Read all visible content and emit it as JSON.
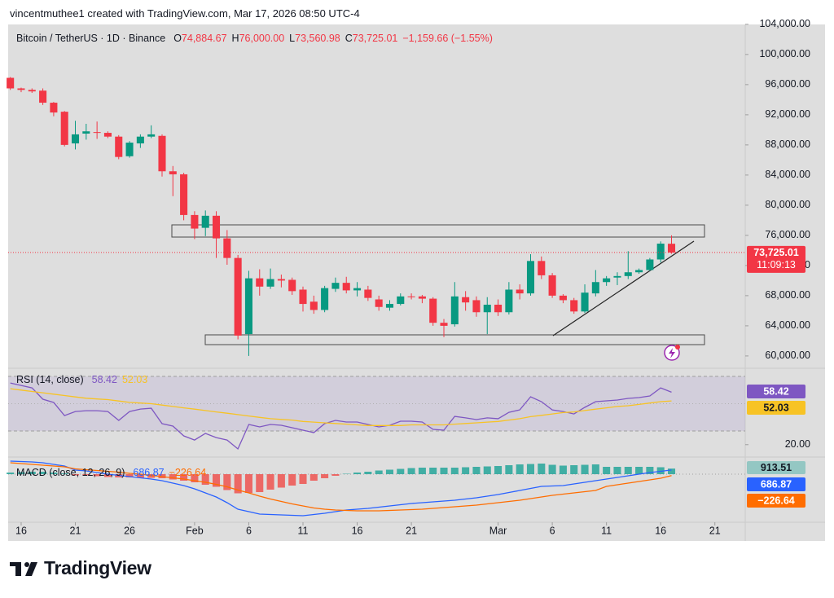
{
  "header": {
    "credit": "vincentmuthee1 created with TradingView.com, Mar 17, 2026 08:50 UTC-4"
  },
  "chart_data": [
    {
      "type": "candlestick",
      "subtitle": "Bitcoin / TetherUS · 1D · Binance",
      "legend": [
        {
          "key": "O",
          "value": "74,884.67"
        },
        {
          "key": "H",
          "value": "76,000.00"
        },
        {
          "key": "L",
          "value": "73,560.98"
        },
        {
          "key": "C",
          "value": "73,725.01"
        }
      ],
      "change": "−1,159.66 (−1.55%)",
      "countdown": "11:09:13",
      "up_color": "#089981",
      "down_color": "#f23645",
      "open": [
        96900,
        95500,
        95300,
        95200,
        93600,
        92400,
        88200,
        89500,
        89700,
        89600,
        89100,
        86500,
        88200,
        89100,
        89200,
        84500,
        84100,
        78700,
        77000,
        78600,
        75600,
        73000,
        62900,
        70300,
        69200,
        70200,
        70100,
        68800,
        67200,
        66100,
        68900,
        69700,
        68700,
        68800,
        67500,
        66400,
        66900,
        67900,
        67900,
        67600,
        64400,
        64200,
        67800,
        67400,
        65800,
        66800,
        65800,
        68800,
        68300,
        72600,
        70700,
        68000,
        67400,
        65900,
        68300,
        69800,
        70400,
        70600,
        71100,
        71400,
        72800,
        74884.67
      ],
      "high": [
        97000,
        95600,
        95500,
        95500,
        93700,
        92500,
        91200,
        90800,
        91100,
        89800,
        89300,
        88500,
        89400,
        90600,
        89400,
        85200,
        84300,
        79200,
        79300,
        79200,
        76700,
        73400,
        71300,
        71500,
        71600,
        70800,
        70400,
        69200,
        68000,
        69300,
        70400,
        70500,
        69800,
        69300,
        68000,
        67400,
        68300,
        68300,
        68100,
        67800,
        64900,
        69800,
        68600,
        67900,
        67800,
        67500,
        69800,
        69500,
        73500,
        73200,
        71000,
        68200,
        67700,
        69500,
        71400,
        70600,
        71100,
        73900,
        71600,
        73000,
        75200,
        76000
      ],
      "low": [
        95300,
        95000,
        94900,
        93300,
        91800,
        87800,
        87400,
        88700,
        88800,
        88900,
        86100,
        86300,
        87600,
        88900,
        83800,
        81200,
        78000,
        75500,
        75900,
        73000,
        72100,
        62200,
        60000,
        68000,
        68900,
        69100,
        68100,
        65900,
        65600,
        65800,
        68500,
        68300,
        67900,
        67300,
        66000,
        66000,
        66700,
        67500,
        67000,
        64000,
        62500,
        63900,
        66000,
        65200,
        62900,
        65300,
        65500,
        67500,
        68000,
        70200,
        67700,
        67000,
        65600,
        65700,
        67900,
        69300,
        69400,
        70200,
        70900,
        71300,
        72400,
        73560.98
      ],
      "close": [
        95500,
        95300,
        95100,
        93600,
        92300,
        88000,
        89400,
        89800,
        89600,
        89100,
        86400,
        88300,
        89100,
        89400,
        84500,
        84100,
        78700,
        76900,
        78600,
        75600,
        73000,
        62700,
        70300,
        69200,
        70200,
        70000,
        68600,
        66900,
        66100,
        69000,
        69700,
        68700,
        69000,
        67700,
        66500,
        66900,
        67900,
        67800,
        67600,
        64400,
        64000,
        67900,
        67100,
        65800,
        66800,
        65800,
        68800,
        68300,
        72600,
        70700,
        68000,
        67400,
        65900,
        68400,
        69800,
        70300,
        70600,
        71100,
        71400,
        72800,
        74900,
        73725.01
      ],
      "xlim": [
        -0.2,
        67.8
      ],
      "xticks": [
        {
          "value": 1,
          "label": "16"
        },
        {
          "value": 6,
          "label": "21"
        },
        {
          "value": 11,
          "label": "26"
        },
        {
          "value": 17,
          "label": "Feb"
        },
        {
          "value": 22,
          "label": "6"
        },
        {
          "value": 27,
          "label": "11"
        },
        {
          "value": 32,
          "label": "16"
        },
        {
          "value": 37,
          "label": "21"
        },
        {
          "value": 45,
          "label": "Mar"
        },
        {
          "value": 50,
          "label": "6"
        },
        {
          "value": 55,
          "label": "11"
        },
        {
          "value": 60,
          "label": "16"
        },
        {
          "value": 65,
          "label": "21"
        }
      ],
      "ylim": [
        58800,
        104200
      ],
      "yticks": [
        {
          "value": 60000,
          "label": "60,000.00"
        },
        {
          "value": 64000,
          "label": "64,000.00"
        },
        {
          "value": 68000,
          "label": "68,000.00"
        },
        {
          "value": 72000,
          "label": "72,000.00"
        },
        {
          "value": 76000,
          "label": "76,000.00"
        },
        {
          "value": 80000,
          "label": "80,000.00"
        },
        {
          "value": 84000,
          "label": "84,000.00"
        },
        {
          "value": 88000,
          "label": "88,000.00"
        },
        {
          "value": 92000,
          "label": "92,000.00"
        },
        {
          "value": 96000,
          "label": "96,000.00"
        },
        {
          "value": 100000,
          "label": "100,000.00"
        },
        {
          "value": 104000,
          "label": "104,000.00"
        }
      ],
      "grid": false
    },
    {
      "type": "line",
      "title": "RSI (14, close)",
      "series": [
        {
          "color": "#7e57c2",
          "last_label": "58.42",
          "values": [
            65.2,
            63.4,
            61.6,
            53.3,
            50.9,
            41.3,
            44.3,
            44.9,
            44.9,
            44.3,
            37.8,
            44.3,
            46.1,
            46.7,
            35.4,
            33.6,
            26.4,
            23.4,
            28.2,
            25.2,
            23.4,
            16.9,
            34.8,
            33.0,
            34.8,
            34.2,
            32.4,
            30.6,
            28.8,
            35.4,
            37.8,
            36.6,
            36.6,
            34.8,
            33.0,
            34.2,
            37.2,
            37.2,
            36.6,
            31.2,
            30.6,
            40.7,
            39.6,
            38.4,
            39.6,
            39.0,
            43.7,
            45.5,
            55.1,
            51.5,
            45.5,
            44.3,
            42.5,
            47.3,
            51.5,
            52.1,
            52.7,
            53.9,
            54.5,
            55.7,
            61.6,
            58.42
          ]
        },
        {
          "color": "#f7c325",
          "last_label": "52.03",
          "values": [
            61,
            60,
            59,
            58,
            57,
            56,
            55,
            54,
            53.5,
            53,
            52,
            51,
            50.5,
            50,
            49,
            48,
            47,
            46,
            45,
            44,
            43,
            42,
            41,
            40,
            39,
            38.5,
            38,
            37,
            36.5,
            36,
            35.5,
            35,
            34.5,
            34,
            34,
            34,
            34,
            34.5,
            34.5,
            34.5,
            34.5,
            35,
            35.5,
            36,
            36.5,
            37,
            38,
            39,
            40.5,
            41.5,
            42.5,
            43.5,
            44,
            45,
            46,
            47,
            48,
            48.5,
            49.5,
            50.5,
            51.5,
            52.03
          ]
        }
      ],
      "ylim": [
        11.5,
        74.2
      ],
      "yticks": [
        {
          "value": 20,
          "label": "20.00"
        }
      ]
    },
    {
      "type": "line",
      "title": "MACD (close, 12, 26, 9)",
      "series": [
        {
          "color": "#2962ff",
          "last_label": "686.87",
          "values": [
            2133,
            2067,
            2000,
            1867,
            1600,
            1333,
            667,
            533,
            267,
            0,
            -200,
            -400,
            -600,
            -800,
            -1067,
            -1467,
            -1867,
            -2400,
            -3067,
            -3733,
            -4667,
            -5733,
            -6133,
            -6533,
            -6600,
            -6667,
            -6733,
            -6800,
            -6600,
            -6400,
            -6133,
            -5867,
            -5733,
            -5600,
            -5400,
            -5200,
            -5000,
            -4800,
            -4667,
            -4533,
            -4400,
            -4267,
            -4067,
            -3867,
            -3600,
            -3333,
            -3000,
            -2667,
            -2333,
            -2000,
            -1933,
            -1867,
            -1600,
            -1333,
            -1067,
            -800,
            -533,
            -267,
            0,
            267,
            467,
            686.87
          ]
        },
        {
          "color": "#ff6d00",
          "last_label": "−226.64",
          "values": [
            1867,
            1733,
            1600,
            1467,
            1333,
            1200,
            867,
            733,
            600,
            467,
            333,
            133,
            0,
            -200,
            -400,
            -600,
            -800,
            -1067,
            -1333,
            -1667,
            -2067,
            -2600,
            -3067,
            -3600,
            -4067,
            -4467,
            -4867,
            -5200,
            -5533,
            -5733,
            -5867,
            -5933,
            -6000,
            -6000,
            -6000,
            -5933,
            -5867,
            -5800,
            -5733,
            -5600,
            -5467,
            -5333,
            -5200,
            -5067,
            -4867,
            -4667,
            -4467,
            -4267,
            -4000,
            -3733,
            -3467,
            -3267,
            -3067,
            -2867,
            -2667,
            -2000,
            -1733,
            -1467,
            -1200,
            -933,
            -667,
            -226.64
          ]
        }
      ],
      "histogram": {
        "up_color": "#26a69a",
        "down_color": "#ef5350",
        "last_label": "913.51",
        "values": [
          266,
          334,
          400,
          400,
          267,
          133,
          -200,
          -200,
          -333,
          -467,
          -533,
          -533,
          -600,
          -600,
          -667,
          -867,
          -1067,
          -1333,
          -1734,
          -2066,
          -2600,
          -3133,
          -3066,
          -2933,
          -2533,
          -2200,
          -1866,
          -1600,
          -1067,
          -667,
          -266,
          66,
          267,
          400,
          600,
          733,
          867,
          1000,
          1066,
          1067,
          1067,
          1066,
          1133,
          1200,
          1267,
          1334,
          1467,
          1600,
          1667,
          1733,
          1534,
          1400,
          1467,
          1534,
          1600,
          1200,
          1200,
          1200,
          1200,
          1200,
          1134,
          913.51
        ]
      },
      "ylim": [
        -7733,
        2667
      ]
    }
  ],
  "footer": {
    "brand": "TradingView"
  }
}
